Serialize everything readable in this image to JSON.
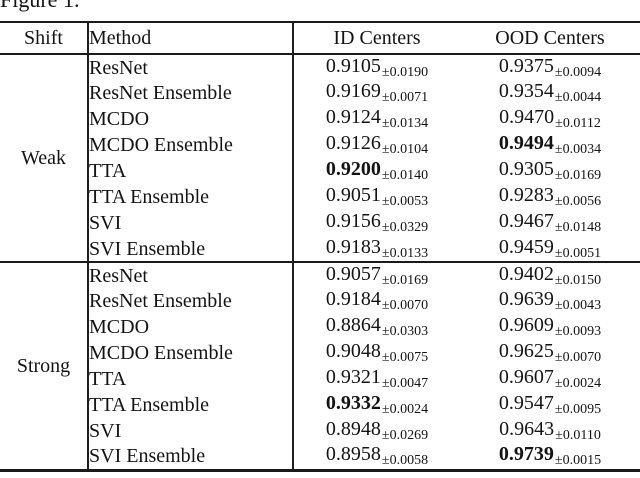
{
  "page": {
    "figure_label": "Figure 1."
  },
  "table": {
    "headers": {
      "shift": "Shift",
      "method": "Method",
      "id_centers": "ID Centers",
      "ood_centers": "OOD Centers"
    },
    "sections": [
      {
        "shift": "Weak",
        "rows": [
          {
            "method": "ResNet",
            "id": {
              "value": "0.9105",
              "err": "±0.0190",
              "bold": false
            },
            "ood": {
              "value": "0.9375",
              "err": "±0.0094",
              "bold": false
            }
          },
          {
            "method": "ResNet Ensemble",
            "id": {
              "value": "0.9169",
              "err": "±0.0071",
              "bold": false
            },
            "ood": {
              "value": "0.9354",
              "err": "±0.0044",
              "bold": false
            }
          },
          {
            "method": "MCDO",
            "id": {
              "value": "0.9124",
              "err": "±0.0134",
              "bold": false
            },
            "ood": {
              "value": "0.9470",
              "err": "±0.0112",
              "bold": false
            }
          },
          {
            "method": "MCDO Ensemble",
            "id": {
              "value": "0.9126",
              "err": "±0.0104",
              "bold": false
            },
            "ood": {
              "value": "0.9494",
              "err": "±0.0034",
              "bold": true
            }
          },
          {
            "method": "TTA",
            "id": {
              "value": "0.9200",
              "err": "±0.0140",
              "bold": true
            },
            "ood": {
              "value": "0.9305",
              "err": "±0.0169",
              "bold": false
            }
          },
          {
            "method": "TTA Ensemble",
            "id": {
              "value": "0.9051",
              "err": "±0.0053",
              "bold": false
            },
            "ood": {
              "value": "0.9283",
              "err": "±0.0056",
              "bold": false
            }
          },
          {
            "method": "SVI",
            "id": {
              "value": "0.9156",
              "err": "±0.0329",
              "bold": false
            },
            "ood": {
              "value": "0.9467",
              "err": "±0.0148",
              "bold": false
            }
          },
          {
            "method": "SVI Ensemble",
            "id": {
              "value": "0.9183",
              "err": "±0.0133",
              "bold": false
            },
            "ood": {
              "value": "0.9459",
              "err": "±0.0051",
              "bold": false
            }
          }
        ]
      },
      {
        "shift": "Strong",
        "rows": [
          {
            "method": "ResNet",
            "id": {
              "value": "0.9057",
              "err": "±0.0169",
              "bold": false
            },
            "ood": {
              "value": "0.9402",
              "err": "±0.0150",
              "bold": false
            }
          },
          {
            "method": "ResNet Ensemble",
            "id": {
              "value": "0.9184",
              "err": "±0.0070",
              "bold": false
            },
            "ood": {
              "value": "0.9639",
              "err": "±0.0043",
              "bold": false
            }
          },
          {
            "method": "MCDO",
            "id": {
              "value": "0.8864",
              "err": "±0.0303",
              "bold": false
            },
            "ood": {
              "value": "0.9609",
              "err": "±0.0093",
              "bold": false
            }
          },
          {
            "method": "MCDO Ensemble",
            "id": {
              "value": "0.9048",
              "err": "±0.0075",
              "bold": false
            },
            "ood": {
              "value": "0.9625",
              "err": "±0.0070",
              "bold": false
            }
          },
          {
            "method": "TTA",
            "id": {
              "value": "0.9321",
              "err": "±0.0047",
              "bold": false
            },
            "ood": {
              "value": "0.9607",
              "err": "±0.0024",
              "bold": false
            }
          },
          {
            "method": "TTA Ensemble",
            "id": {
              "value": "0.9332",
              "err": "±0.0024",
              "bold": true
            },
            "ood": {
              "value": "0.9547",
              "err": "±0.0095",
              "bold": false
            }
          },
          {
            "method": "SVI",
            "id": {
              "value": "0.8948",
              "err": "±0.0269",
              "bold": false
            },
            "ood": {
              "value": "0.9643",
              "err": "±0.0110",
              "bold": false
            }
          },
          {
            "method": "SVI Ensemble",
            "id": {
              "value": "0.8958",
              "err": "±0.0058",
              "bold": false
            },
            "ood": {
              "value": "0.9739",
              "err": "±0.0015",
              "bold": true
            }
          }
        ]
      }
    ]
  }
}
